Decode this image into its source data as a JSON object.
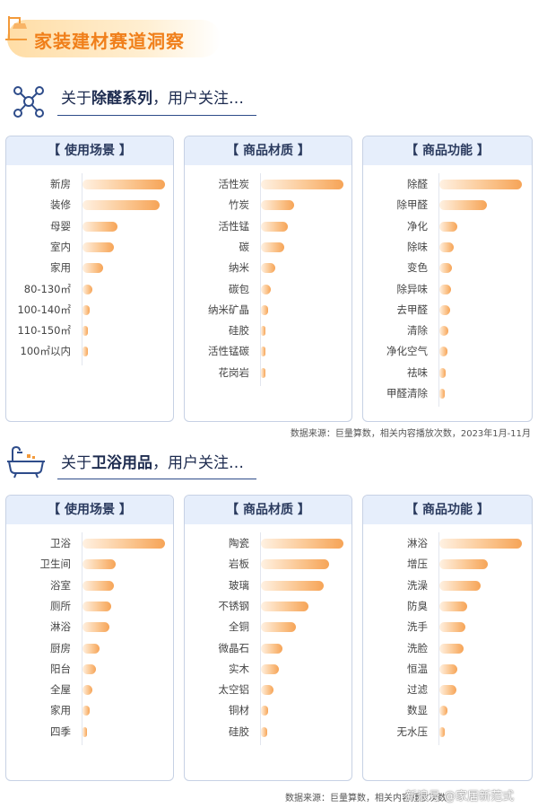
{
  "header": {
    "title": "家装建材赛道洞察"
  },
  "sections": [
    {
      "title_pre": "关于",
      "title_bold": "除醛系列",
      "title_post": "，用户关注…",
      "source": "数据来源：巨量算数，相关内容播放次数，2023年1月-11月",
      "panels": [
        {
          "title": "【 使用场景 】",
          "chart_data": {
            "type": "bar",
            "orientation": "horizontal",
            "categories": [
              "新房",
              "装修",
              "母婴",
              "室内",
              "家用",
              "80-130㎡",
              "100-140㎡",
              "110-150㎡",
              "100㎡以内"
            ],
            "values": [
              100,
              93,
              42,
              38,
              25,
              12,
              9,
              7,
              6
            ]
          }
        },
        {
          "title": "【 商品材质 】",
          "chart_data": {
            "type": "bar",
            "orientation": "horizontal",
            "categories": [
              "活性炭",
              "竹炭",
              "活性锰",
              "碳",
              "纳米",
              "碳包",
              "纳米矿晶",
              "硅胶",
              "活性锰碳",
              "花岗岩"
            ],
            "values": [
              100,
              40,
              33,
              28,
              17,
              12,
              9,
              5,
              3,
              2
            ]
          }
        },
        {
          "title": "【 商品功能 】",
          "chart_data": {
            "type": "bar",
            "orientation": "horizontal",
            "categories": [
              "除醛",
              "除甲醛",
              "净化",
              "除味",
              "变色",
              "除异味",
              "去甲醛",
              "清除",
              "净化空气",
              "祛味",
              "甲醛清除"
            ],
            "values": [
              100,
              58,
              22,
              17,
              15,
              14,
              13,
              11,
              10,
              8,
              7
            ]
          }
        }
      ]
    },
    {
      "title_pre": "关于",
      "title_bold": "卫浴用品",
      "title_post": "，用户关注…",
      "source": "数据来源：巨量算数，相关内容播放次数",
      "panels": [
        {
          "title": "【 使用场景 】",
          "chart_data": {
            "type": "bar",
            "orientation": "horizontal",
            "categories": [
              "卫浴",
              "卫生间",
              "浴室",
              "厕所",
              "淋浴",
              "厨房",
              "阳台",
              "全屋",
              "家用",
              "四季"
            ],
            "values": [
              100,
              40,
              38,
              35,
              33,
              21,
              16,
              12,
              9,
              4
            ]
          }
        },
        {
          "title": "【 商品材质 】",
          "chart_data": {
            "type": "bar",
            "orientation": "horizontal",
            "categories": [
              "陶瓷",
              "岩板",
              "玻璃",
              "不锈钢",
              "全铜",
              "微晶石",
              "实木",
              "太空铝",
              "铜材",
              "硅胶"
            ],
            "values": [
              100,
              83,
              76,
              58,
              42,
              26,
              22,
              15,
              9,
              8
            ]
          }
        },
        {
          "title": "【 商品功能 】",
          "chart_data": {
            "type": "bar",
            "orientation": "horizontal",
            "categories": [
              "淋浴",
              "增压",
              "洗澡",
              "防臭",
              "洗手",
              "洗脸",
              "恒温",
              "过滤",
              "数显",
              "无水压"
            ],
            "values": [
              100,
              59,
              50,
              34,
              31,
              29,
              22,
              21,
              10,
              6
            ]
          }
        }
      ]
    }
  ],
  "watermark": "新浪号 @家居新范式"
}
